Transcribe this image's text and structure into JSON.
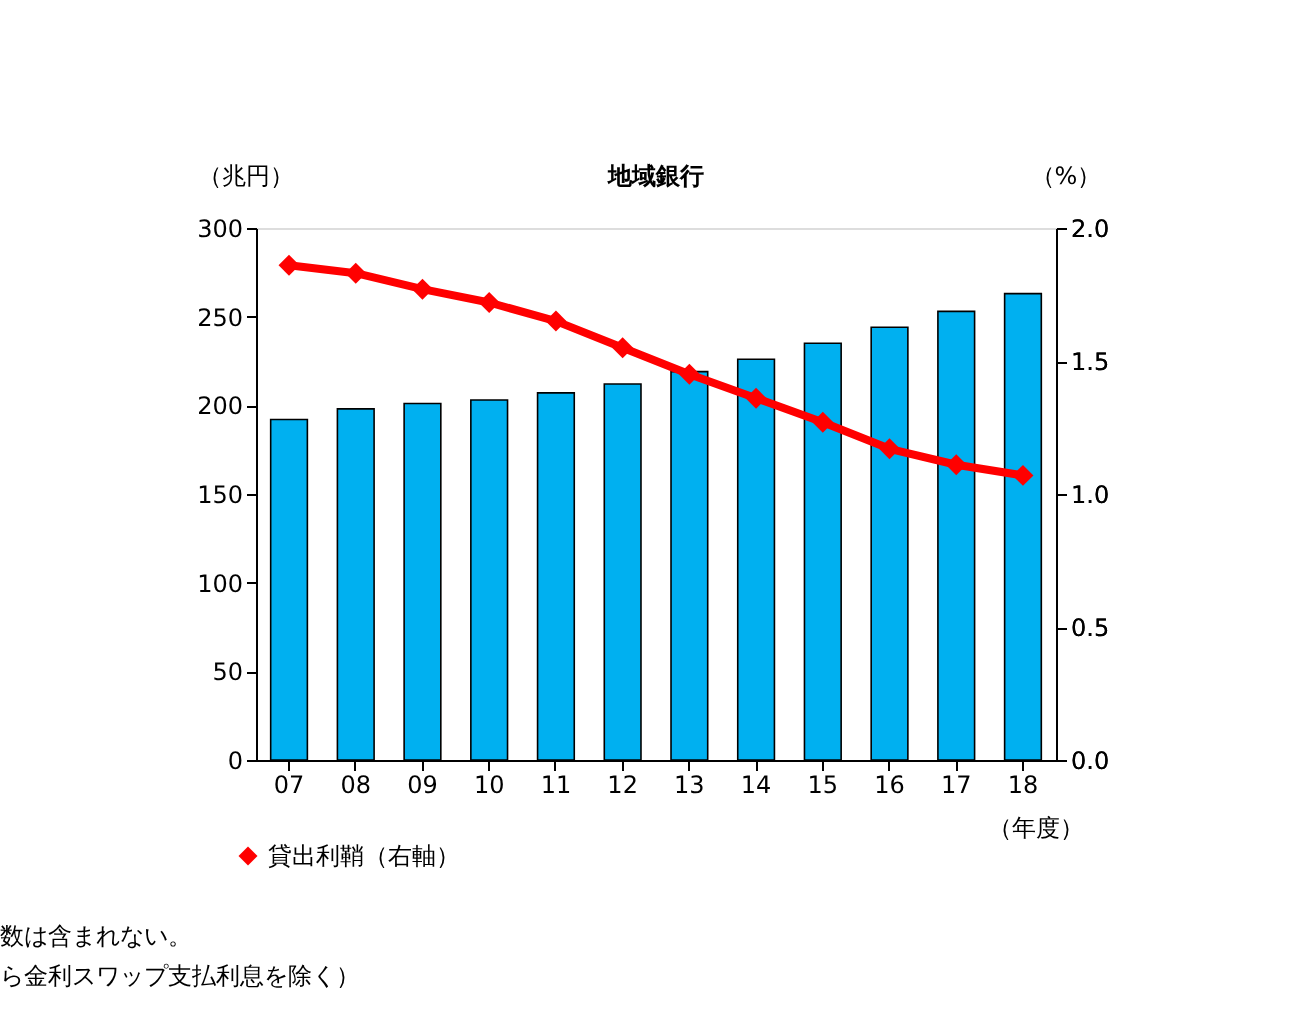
{
  "chart_data": {
    "type": "bar",
    "title": "地域銀行",
    "ylabel": "（兆円）",
    "y2label": "（%）",
    "xlabel": "（年度）",
    "categories": [
      "07",
      "08",
      "09",
      "10",
      "11",
      "12",
      "13",
      "14",
      "15",
      "16",
      "17",
      "18"
    ],
    "series": [
      {
        "color": "#00b0f0",
        "values": [
          192,
          198,
          201,
          203,
          207,
          212,
          219,
          226,
          235,
          244,
          253,
          263
        ]
      },
      {
        "type": "line",
        "name": "貸出利鞘（右軸）",
        "axis": "y2",
        "color": "#ff0000",
        "marker": "diamond",
        "values": [
          1.86,
          1.83,
          1.77,
          1.72,
          1.65,
          1.55,
          1.45,
          1.36,
          1.27,
          1.17,
          1.11,
          1.07
        ]
      }
    ],
    "ylim": [
      0,
      300
    ],
    "yticks": [
      0,
      50,
      100,
      150,
      200,
      250,
      300
    ],
    "y2lim": [
      0,
      2.0
    ],
    "y2ticks": [
      {
        "value": 0,
        "label": "0.0"
      },
      {
        "value": 0.5,
        "label": "0.5"
      },
      {
        "value": 1,
        "label": "1.0"
      },
      {
        "value": 1.5,
        "label": "1.5"
      },
      {
        "value": 2,
        "label": "2.0"
      }
    ],
    "grid": false,
    "legend": "bottom",
    "annotations": [
      "数は含まれない。",
      "ら金利スワップ支払利息を除く）"
    ]
  }
}
